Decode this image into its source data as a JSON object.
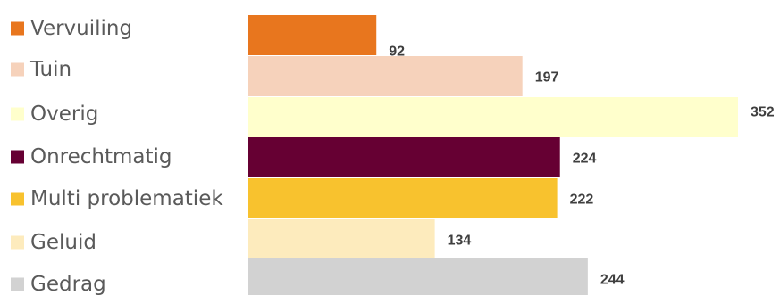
{
  "chart_data": {
    "type": "bar",
    "orientation": "horizontal",
    "legend_placement": "left",
    "grid": false,
    "xlim": [
      0,
      352
    ],
    "categories": [
      "Vervuiling",
      "Tuin",
      "Overig",
      "Onrechtmatig",
      "Multi problematiek",
      "Geluid",
      "Gedrag"
    ],
    "values": [
      92,
      197,
      352,
      224,
      222,
      134,
      244
    ],
    "colors": [
      "#e8761e",
      "#f6d2bb",
      "#ffffcc",
      "#660033",
      "#f8c22e",
      "#fdebbd",
      "#d2d2d2"
    ]
  }
}
